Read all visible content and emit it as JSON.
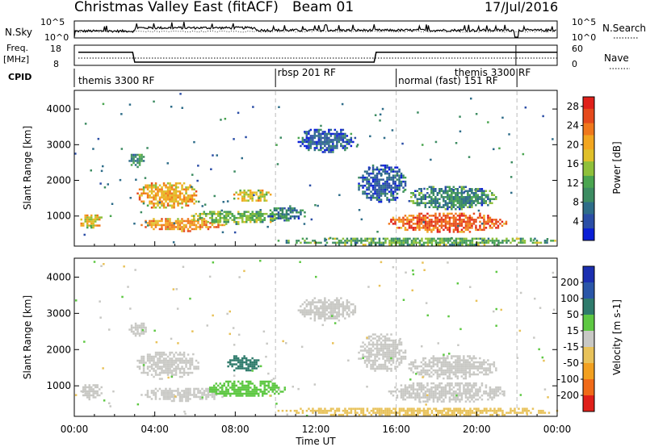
{
  "header": {
    "title": "Christmas Valley East (fitACF)",
    "beam": "Beam 01",
    "date": "17/Jul/2016"
  },
  "left_labels": {
    "nsky": "N.Sky",
    "freq_line1": "Freq.",
    "freq_line2": "[MHz]",
    "cpid": "CPID"
  },
  "right_labels": {
    "nsearch": "N.Search",
    "nave": "Nave"
  },
  "noise_ticks": {
    "left_top": "10^5",
    "left_bottom": "10^0",
    "right_top": "10^5",
    "right_bottom": "10^0"
  },
  "freq_ticks": {
    "left_top": "18",
    "left_bottom": "8",
    "right_top": "60",
    "right_bottom": "0"
  },
  "cpid_labels": [
    {
      "text": "themis 3300 RF",
      "x_hours": 0.2,
      "row": "lower"
    },
    {
      "text": "rbsp 201 RF",
      "x_hours": 10.1,
      "row": "upper"
    },
    {
      "text": "normal (fast) 151 RF",
      "x_hours": 16.1,
      "row": "lower"
    },
    {
      "text": "themis 3300 RF",
      "x_hours": 18.9,
      "row": "upper"
    }
  ],
  "cpid_boundaries_hours": [
    10.0,
    16.0,
    22.0
  ],
  "x_axis": {
    "label": "Time UT",
    "ticks": [
      "00:00",
      "04:00",
      "08:00",
      "12:00",
      "16:00",
      "20:00",
      "00:00"
    ],
    "range_hours": [
      0,
      24
    ]
  },
  "panels": {
    "power": {
      "ylabel": "Slant Range [km]",
      "cbar_label": "Power [dB]",
      "cbar_ticks": [
        "4",
        "8",
        "12",
        "16",
        "20",
        "24",
        "28"
      ]
    },
    "velocity": {
      "ylabel": "Slant Range [km]",
      "cbar_label": "Velocity [m s-1]",
      "cbar_ticks": [
        "200",
        "100",
        "50",
        "15",
        "-15",
        "-50",
        "-100",
        "-200"
      ]
    }
  },
  "chart_data": [
    {
      "type": "line",
      "title": "N.Sky / N.Search",
      "x_range_hours": [
        0,
        24
      ],
      "note_series": [
        {
          "name": "N.Sky",
          "x": [
            0.2,
            3,
            6,
            9,
            12,
            15,
            18,
            21,
            24
          ],
          "y": [
            1.5,
            2.0,
            1.8,
            1.6,
            1.5,
            1.4,
            1.3,
            1.2,
            1.0
          ]
        }
      ],
      "yscale": "log",
      "ylim": [
        "10^0",
        "10^5"
      ]
    },
    {
      "type": "line",
      "title": "Freq / Nave",
      "x_range_hours": [
        0,
        24
      ],
      "series": [
        {
          "name": "Freq",
          "x": [
            0.2,
            2.9,
            3.0,
            14.9,
            15.0,
            21.9,
            22.0,
            24
          ],
          "y": [
            14.5,
            14.5,
            9.6,
            9.6,
            14.5,
            14.5,
            14.5,
            14.5
          ]
        },
        {
          "name": "Nave",
          "x": [
            0.2,
            24
          ],
          "y": [
            17,
            17
          ]
        }
      ],
      "ylim_freq": [
        8,
        18
      ],
      "ylim_nave": [
        0,
        60
      ]
    },
    {
      "type": "heatmap",
      "title": "Power [dB]",
      "x_range_hours": [
        0,
        24
      ],
      "y_range_km": [
        180,
        4500
      ],
      "y_ticks": [
        1000,
        2000,
        3000,
        4000
      ],
      "color_scale": {
        "min": 0,
        "max": 30,
        "colors": [
          "#0a1fd6",
          "#2b4ea6",
          "#2e6d89",
          "#3d8c62",
          "#4aa550",
          "#8fc03a",
          "#e0c02a",
          "#f2a620",
          "#f0781c",
          "#e54a1c",
          "#e0201a"
        ]
      },
      "blobs": [
        {
          "x0": 0.2,
          "x1": 1.4,
          "y0": 650,
          "y1": 1100,
          "value": 18
        },
        {
          "x0": 2.6,
          "x1": 3.6,
          "y0": 2400,
          "y1": 2800,
          "value": 10
        },
        {
          "x0": 3.0,
          "x1": 6.2,
          "y0": 1200,
          "y1": 2000,
          "value": 20
        },
        {
          "x0": 3.2,
          "x1": 7.5,
          "y0": 600,
          "y1": 1000,
          "value": 21
        },
        {
          "x0": 7.8,
          "x1": 9.8,
          "y0": 1400,
          "y1": 1800,
          "value": 17
        },
        {
          "x0": 5.5,
          "x1": 10.5,
          "y0": 800,
          "y1": 1200,
          "value": 13
        },
        {
          "x0": 9.5,
          "x1": 11.5,
          "y0": 900,
          "y1": 1300,
          "value": 8
        },
        {
          "x0": 11.0,
          "x1": 14.0,
          "y0": 2800,
          "y1": 3500,
          "value": 5
        },
        {
          "x0": 14.0,
          "x1": 16.5,
          "y0": 1400,
          "y1": 2500,
          "value": 5
        },
        {
          "x0": 15.5,
          "x1": 21.5,
          "y0": 550,
          "y1": 1150,
          "value": 25
        },
        {
          "x0": 16.5,
          "x1": 21.0,
          "y0": 1200,
          "y1": 1900,
          "value": 9
        },
        {
          "x0": 10.0,
          "x1": 24.0,
          "y0": 200,
          "y1": 450,
          "value": 12
        }
      ]
    },
    {
      "type": "heatmap",
      "title": "Velocity [m s-1]",
      "x_range_hours": [
        0,
        24
      ],
      "y_range_km": [
        180,
        4500
      ],
      "y_ticks": [
        1000,
        2000,
        3000,
        4000
      ],
      "color_scale": {
        "levels": [
          250,
          200,
          100,
          50,
          15,
          -15,
          -50,
          -100,
          -200,
          -250
        ],
        "colors": [
          "#1b2fb0",
          "#2a56a8",
          "#2f7b6c",
          "#5ec843",
          "#c8c8c4",
          "#e8c25a",
          "#f2a020",
          "#f06a18",
          "#e0201a"
        ]
      },
      "blobs": [
        {
          "x0": 0.2,
          "x1": 1.4,
          "y0": 650,
          "y1": 1100,
          "value": 0
        },
        {
          "x0": 2.6,
          "x1": 3.6,
          "y0": 2400,
          "y1": 2800,
          "value": 0
        },
        {
          "x0": 3.0,
          "x1": 6.2,
          "y0": 1200,
          "y1": 2000,
          "value": 0
        },
        {
          "x0": 3.2,
          "x1": 7.5,
          "y0": 600,
          "y1": 1000,
          "value": 0
        },
        {
          "x0": 7.5,
          "x1": 9.2,
          "y0": 1400,
          "y1": 1900,
          "value": 80
        },
        {
          "x0": 6.5,
          "x1": 10.5,
          "y0": 700,
          "y1": 1200,
          "value": 30
        },
        {
          "x0": 11.0,
          "x1": 14.0,
          "y0": 2800,
          "y1": 3500,
          "value": 0
        },
        {
          "x0": 14.0,
          "x1": 16.5,
          "y0": 1400,
          "y1": 2500,
          "value": 0
        },
        {
          "x0": 15.5,
          "x1": 21.5,
          "y0": 550,
          "y1": 1150,
          "value": 0
        },
        {
          "x0": 16.5,
          "x1": 21.0,
          "y0": 1200,
          "y1": 1900,
          "value": 0
        },
        {
          "x0": 10.0,
          "x1": 24.0,
          "y0": 200,
          "y1": 450,
          "value": -30
        }
      ]
    }
  ]
}
